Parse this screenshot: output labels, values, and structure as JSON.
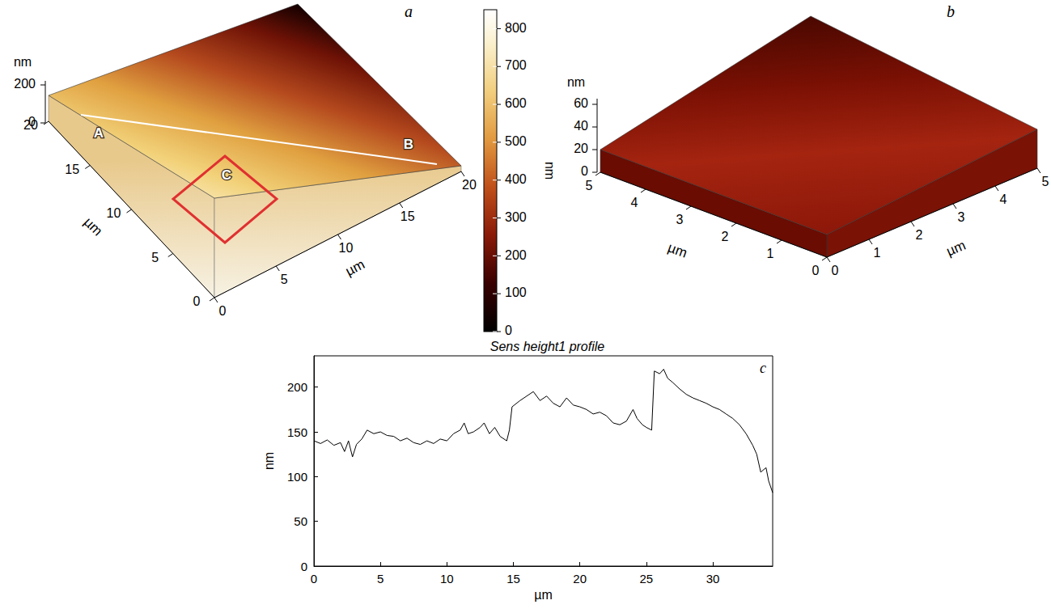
{
  "panels": {
    "a": {
      "letter": "a",
      "type": "surface3d",
      "x_label": "µm",
      "xlim": [
        0,
        20
      ],
      "xticks": [
        0,
        5,
        10,
        15,
        20
      ],
      "y_label": "µm",
      "ylim": [
        0,
        20
      ],
      "yticks": [
        0,
        5,
        10,
        15,
        20
      ],
      "z_label": "nm",
      "zlim": [
        0,
        200
      ],
      "zticks": [
        0,
        200
      ],
      "profile_line": {
        "start": "A",
        "end": "B"
      },
      "region": "C",
      "colorbar": {
        "label": "nm",
        "range": [
          0,
          850
        ],
        "ticks": [
          0,
          100,
          200,
          300,
          400,
          500,
          600,
          700,
          800
        ]
      }
    },
    "b": {
      "letter": "b",
      "type": "surface3d",
      "x_label": "µm",
      "xlim": [
        0,
        5
      ],
      "xticks": [
        0,
        1,
        2,
        3,
        4,
        5
      ],
      "y_label": "µm",
      "ylim": [
        0,
        5
      ],
      "yticks": [
        0,
        1,
        2,
        3,
        4,
        5
      ],
      "z_label": "nm",
      "zlim": [
        0,
        65
      ],
      "zticks": [
        0,
        20,
        40,
        60
      ]
    }
  },
  "chart_data": {
    "type": "line",
    "letter": "c",
    "title": "Sens height1 profile",
    "x_label": "µm",
    "y_label": "nm",
    "xlim": [
      0,
      34.5
    ],
    "xticks": [
      0,
      5,
      10,
      15,
      20,
      25,
      30
    ],
    "ylim": [
      0,
      235
    ],
    "yticks": [
      0,
      50,
      100,
      150,
      200
    ],
    "color": "#000000",
    "x": [
      0,
      0.5,
      1,
      1.5,
      2,
      2.3,
      2.6,
      2.9,
      3.2,
      3.6,
      4,
      4.5,
      5,
      5.5,
      6,
      6.5,
      7,
      7.5,
      8,
      8.5,
      9,
      9.5,
      10,
      10.5,
      11,
      11.3,
      11.6,
      12,
      12.5,
      12.8,
      13.2,
      13.6,
      14,
      14.5,
      14.7,
      14.9,
      15.5,
      16,
      16.5,
      17,
      17.5,
      18,
      18.5,
      19,
      19.5,
      20,
      20.5,
      21,
      21.5,
      22,
      22.5,
      23,
      23.5,
      24,
      24.3,
      24.7,
      25,
      25.4,
      25.6,
      26,
      26.3,
      26.6,
      27,
      27.5,
      28,
      28.5,
      29,
      29.5,
      30,
      30.5,
      31,
      31.5,
      32,
      32.5,
      33,
      33.3,
      33.6,
      34,
      34.2,
      34.5
    ],
    "values": [
      140,
      137,
      141,
      135,
      138,
      128,
      140,
      122,
      136,
      142,
      152,
      148,
      150,
      146,
      145,
      140,
      143,
      138,
      136,
      140,
      137,
      142,
      140,
      148,
      152,
      160,
      148,
      150,
      155,
      160,
      148,
      155,
      145,
      140,
      152,
      178,
      185,
      190,
      195,
      185,
      190,
      182,
      178,
      188,
      180,
      178,
      175,
      170,
      172,
      168,
      160,
      158,
      162,
      175,
      165,
      158,
      155,
      152,
      218,
      215,
      220,
      210,
      205,
      198,
      192,
      188,
      185,
      182,
      178,
      175,
      170,
      165,
      158,
      148,
      135,
      125,
      105,
      110,
      95,
      82
    ]
  }
}
